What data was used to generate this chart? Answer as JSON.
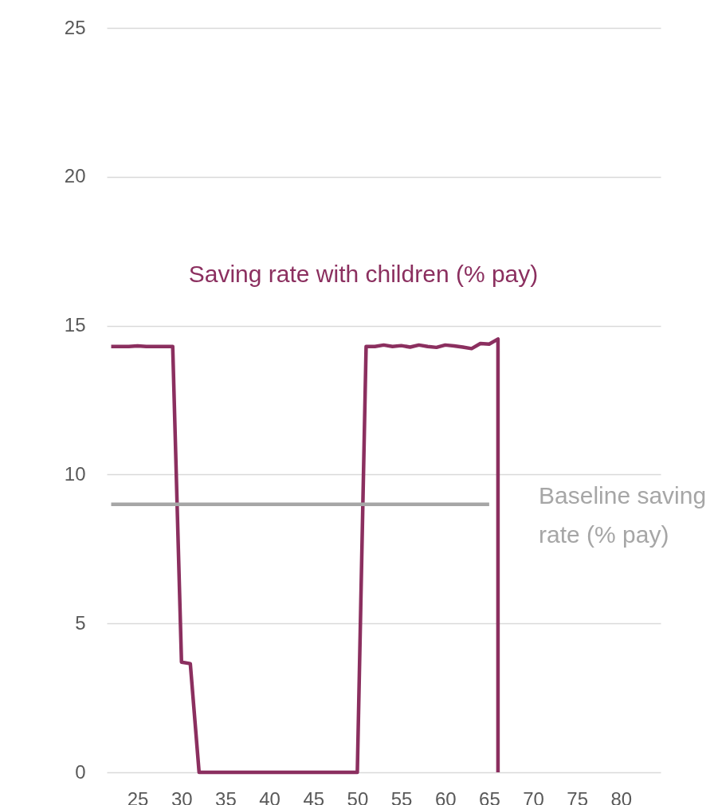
{
  "chart_data": {
    "type": "line",
    "xlim": [
      21.5,
      84.5
    ],
    "xticks": [
      25,
      30,
      35,
      40,
      45,
      50,
      55,
      60,
      65,
      70,
      75,
      80
    ],
    "ylim": [
      0,
      25
    ],
    "yticks": [
      0,
      5,
      10,
      15,
      20,
      25
    ],
    "grid": "y",
    "line_style": "solid",
    "marker": "none",
    "series": [
      {
        "name": "Saving rate with children (% pay)",
        "color": "#8b2f5f",
        "x": [
          22,
          23,
          24,
          25,
          26,
          27,
          28,
          29,
          30,
          31,
          32,
          33,
          40,
          50,
          51,
          52,
          53,
          54,
          55,
          56,
          57,
          58,
          59,
          60,
          61,
          62,
          63,
          64,
          65,
          66,
          66
        ],
        "values": [
          14.3,
          14.3,
          14.3,
          14.32,
          14.3,
          14.3,
          14.3,
          14.3,
          3.7,
          3.65,
          0,
          0,
          0,
          0,
          14.3,
          14.3,
          14.35,
          14.3,
          14.33,
          14.28,
          14.35,
          14.3,
          14.27,
          14.35,
          14.32,
          14.28,
          14.23,
          14.4,
          14.38,
          14.55,
          0
        ]
      },
      {
        "name": "Baseline saving rate (% pay)",
        "color": "#a6a6a6",
        "x": [
          22,
          65
        ],
        "values": [
          9,
          9
        ]
      }
    ]
  }
}
